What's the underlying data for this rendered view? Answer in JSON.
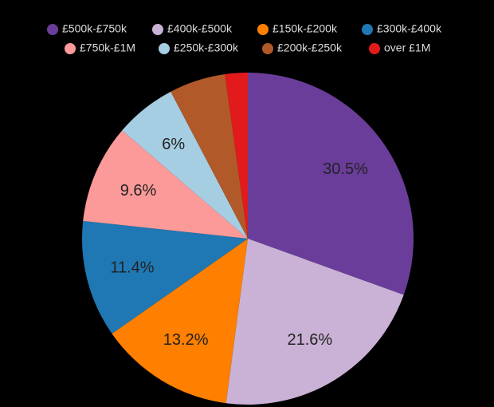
{
  "chart_data": {
    "type": "pie",
    "categories": [
      "£500k-£750k",
      "£400k-£500k",
      "£150k-£200k",
      "£300k-£400k",
      "£750k-£1M",
      "£250k-£300k",
      "£200k-£250k",
      "over £1M"
    ],
    "values": [
      30.5,
      21.6,
      13.2,
      11.4,
      9.6,
      6,
      5.5,
      2.2
    ],
    "value_labels": [
      "30.5%",
      "21.6%",
      "13.2%",
      "11.4%",
      "9.6%",
      "6%",
      null,
      null
    ],
    "colors": [
      "#6a3d9a",
      "#cab2d6",
      "#ff7f00",
      "#1f78b4",
      "#fb9a99",
      "#a6cee3",
      "#b15928",
      "#e31a1c"
    ]
  }
}
